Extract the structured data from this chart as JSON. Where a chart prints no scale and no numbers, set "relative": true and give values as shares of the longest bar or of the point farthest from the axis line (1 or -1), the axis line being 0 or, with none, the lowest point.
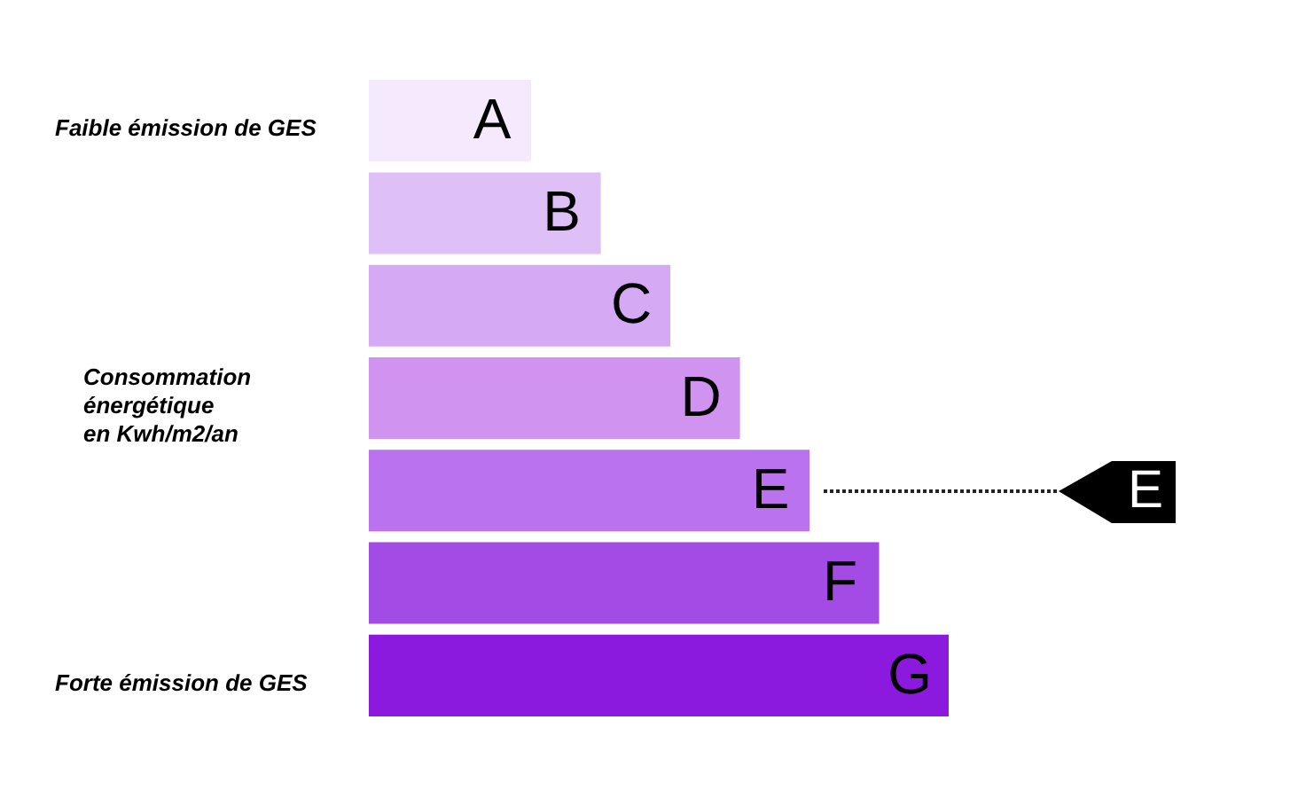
{
  "chart_data": {
    "type": "bar",
    "orientation": "horizontal",
    "relative": true,
    "categories": [
      "A",
      "B",
      "C",
      "D",
      "E",
      "F",
      "G"
    ],
    "values": [
      0.28,
      0.4,
      0.52,
      0.64,
      0.76,
      0.88,
      1
    ],
    "colors": [
      "#f5eafd",
      "#dfc0f6",
      "#d5a9f4",
      "#d193f0",
      "#bb72ee",
      "#a24be5",
      "#8b1ade"
    ],
    "annotations": [
      "Faible émission de GES",
      "Consommation énergétique en Kwh/m2/an",
      "Forte émission de GES",
      {
        "text": "E",
        "x": 0.76,
        "y": "E"
      }
    ]
  }
}
